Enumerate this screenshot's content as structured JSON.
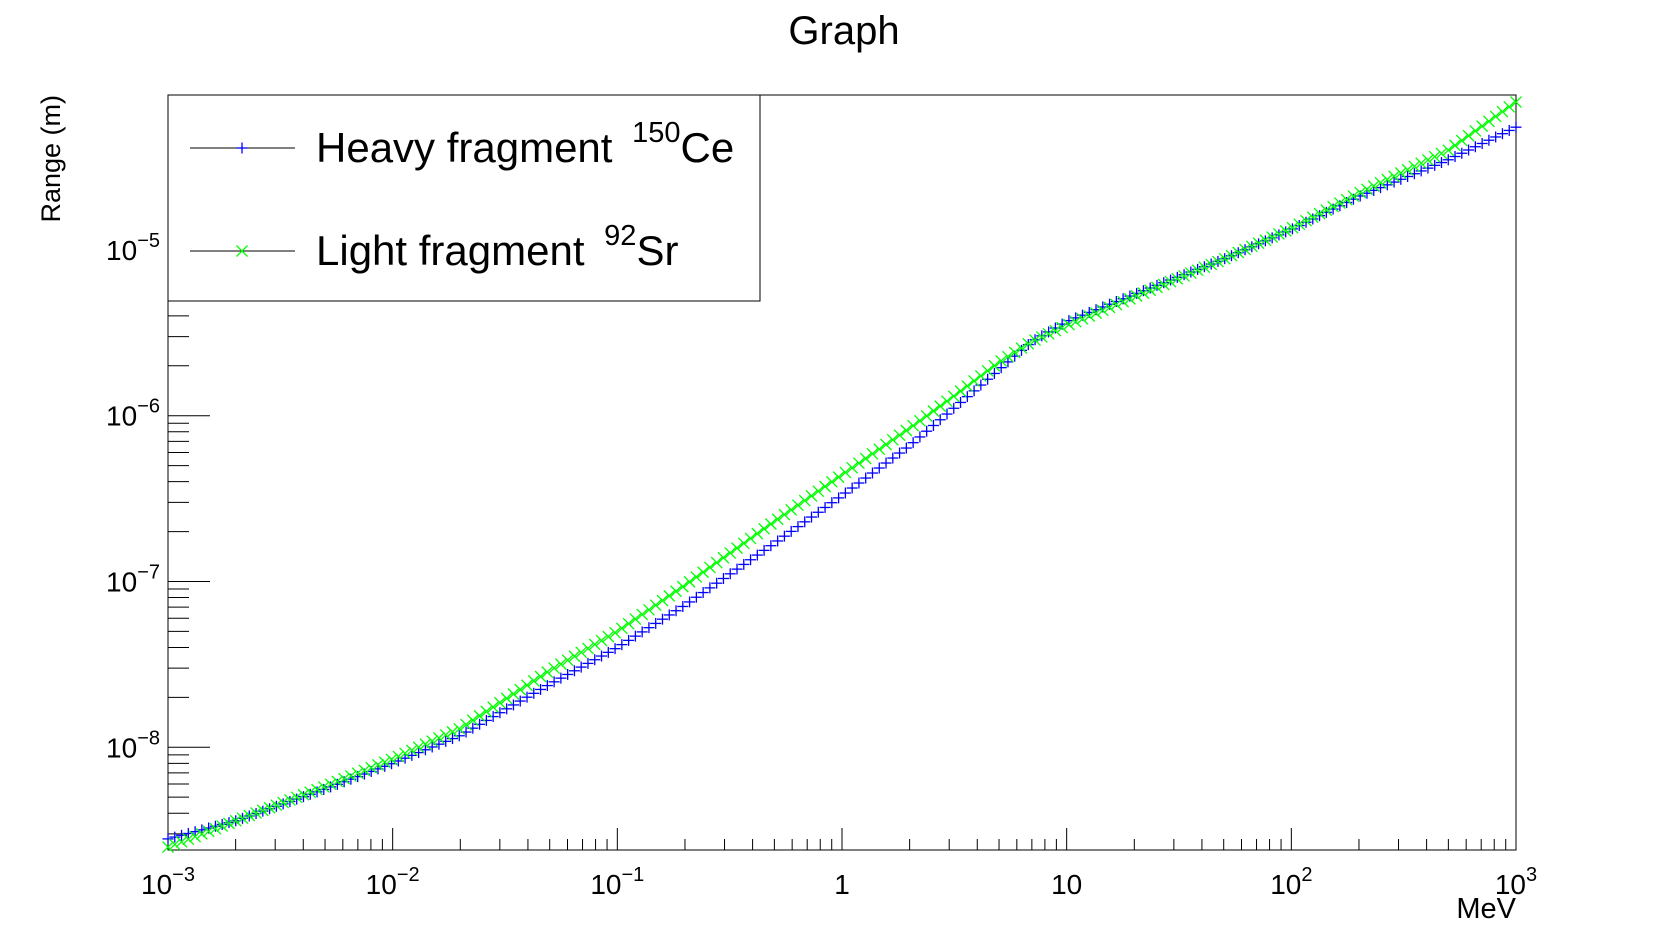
{
  "chart_data": {
    "type": "scatter",
    "title": "Graph",
    "xlabel": "MeV",
    "ylabel": "Range (m)",
    "xscale": "log",
    "yscale": "log",
    "xlim": [
      0.001,
      1000
    ],
    "ylim": [
      2.4e-09,
      8.6e-05
    ],
    "grid": false,
    "legend_position": "top-left",
    "x_tick_labels": [
      {
        "value": 0.001,
        "base": "10",
        "exp": "−3"
      },
      {
        "value": 0.01,
        "base": "10",
        "exp": "−2"
      },
      {
        "value": 0.1,
        "base": "10",
        "exp": "−1"
      },
      {
        "value": 1,
        "base": "1",
        "exp": ""
      },
      {
        "value": 10,
        "base": "10",
        "exp": ""
      },
      {
        "value": 100,
        "base": "10",
        "exp": "2"
      },
      {
        "value": 1000,
        "base": "10",
        "exp": "3"
      }
    ],
    "y_tick_labels": [
      {
        "value": 1e-08,
        "base": "10",
        "exp": "−8"
      },
      {
        "value": 1e-07,
        "base": "10",
        "exp": "−7"
      },
      {
        "value": 1e-06,
        "base": "10",
        "exp": "−6"
      },
      {
        "value": 1e-05,
        "base": "10",
        "exp": "−5"
      }
    ],
    "series": [
      {
        "name": "Heavy fragment",
        "isotope_mass": "150",
        "isotope_symbol": "Ce",
        "color": "#0000ff",
        "marker": "plus",
        "x": [
          0.001,
          0.002,
          0.005,
          0.01,
          0.02,
          0.05,
          0.1,
          0.2,
          0.5,
          1,
          2,
          3,
          5,
          7,
          10,
          20,
          50,
          100,
          200,
          500,
          1000
        ],
        "y": [
          2.8e-09,
          3.6e-09,
          5.6e-09,
          8e-09,
          1.18e-08,
          2.4e-08,
          4e-08,
          7.2e-08,
          1.7e-07,
          3.3e-07,
          6.6e-07,
          1.05e-06,
          1.9e-06,
          2.8e-06,
          3.7e-06,
          5.4e-06,
          8.8e-06,
          1.33e-05,
          2.1e-05,
          3.5e-05,
          5.5e-05
        ]
      },
      {
        "name": "Light fragment",
        "isotope_mass": "92",
        "isotope_symbol": "Sr",
        "color": "#00ff00",
        "marker": "cross",
        "x": [
          0.001,
          0.002,
          0.005,
          0.01,
          0.02,
          0.05,
          0.1,
          0.2,
          0.5,
          1,
          2,
          3,
          5,
          7,
          10,
          20,
          50,
          100,
          200,
          500,
          1000
        ],
        "y": [
          2.5e-09,
          3.6e-09,
          5.8e-09,
          8.5e-09,
          1.3e-08,
          2.9e-08,
          5e-08,
          9.5e-08,
          2.3e-07,
          4.4e-07,
          8.4e-07,
          1.25e-06,
          2.1e-06,
          2.8e-06,
          3.5e-06,
          5.2e-06,
          8.8e-06,
          1.35e-05,
          2.2e-05,
          4e-05,
          7.8e-05
        ]
      }
    ]
  }
}
